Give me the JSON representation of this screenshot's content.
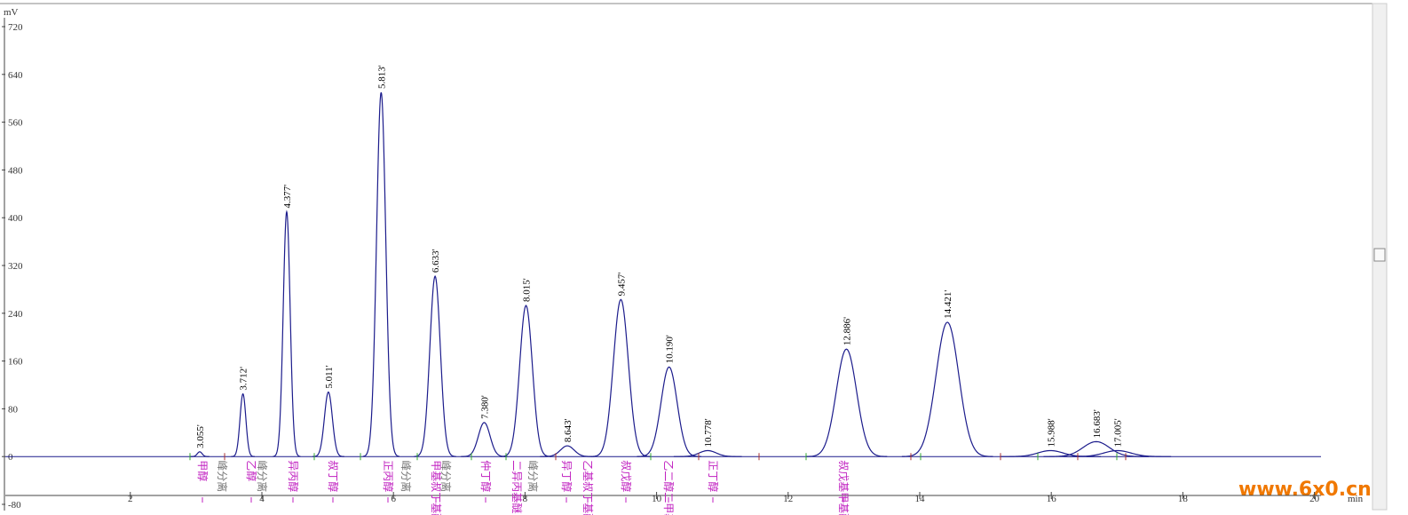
{
  "chart_data": {
    "type": "chromatogram",
    "y_label": "mV",
    "x_label": "min",
    "ylim": [
      -80,
      720
    ],
    "yticks": [
      -80,
      0,
      80,
      160,
      240,
      320,
      400,
      480,
      560,
      640,
      720
    ],
    "xlim": [
      0.1,
      20.1
    ],
    "xticks": [
      2,
      4,
      6,
      8,
      10,
      12,
      14,
      16,
      18,
      20
    ],
    "color": "#1c1c8c",
    "x": [
      3.055,
      3.712,
      4.377,
      5.011,
      5.813,
      6.633,
      7.38,
      8.015,
      8.643,
      9.457,
      10.19,
      10.778,
      12.886,
      14.421,
      15.988,
      16.683,
      17.005
    ],
    "x_labels": [
      "3.055'",
      "3.712'",
      "4.377'",
      "5.011'",
      "5.813'",
      "6.633'",
      "7.380'",
      "8.015'",
      "8.643'",
      "9.457'",
      "10.190'",
      "10.778'",
      "12.886'",
      "14.421'",
      "15.988'",
      "16.683'",
      "17.005'"
    ],
    "values": [
      8,
      105,
      410,
      108,
      610,
      302,
      57,
      253,
      18,
      263,
      150,
      10,
      180,
      225,
      10,
      25,
      10
    ],
    "component_labels": [
      "甲醇",
      "乙醇",
      "异丙醇",
      "叔丁醇",
      "正丙醇",
      "甲基叔丁基醚",
      "仲丁醇",
      "二异丙基醚",
      "异丁醇",
      "乙基叔丁基醚",
      "叔戊醇",
      "乙二醇二甲基醚",
      "正丁醇",
      "叔戊基甲基醚"
    ],
    "separation_label": "峰分离",
    "label_color": "#c020c0",
    "watermark": "www.6x0.cn"
  }
}
